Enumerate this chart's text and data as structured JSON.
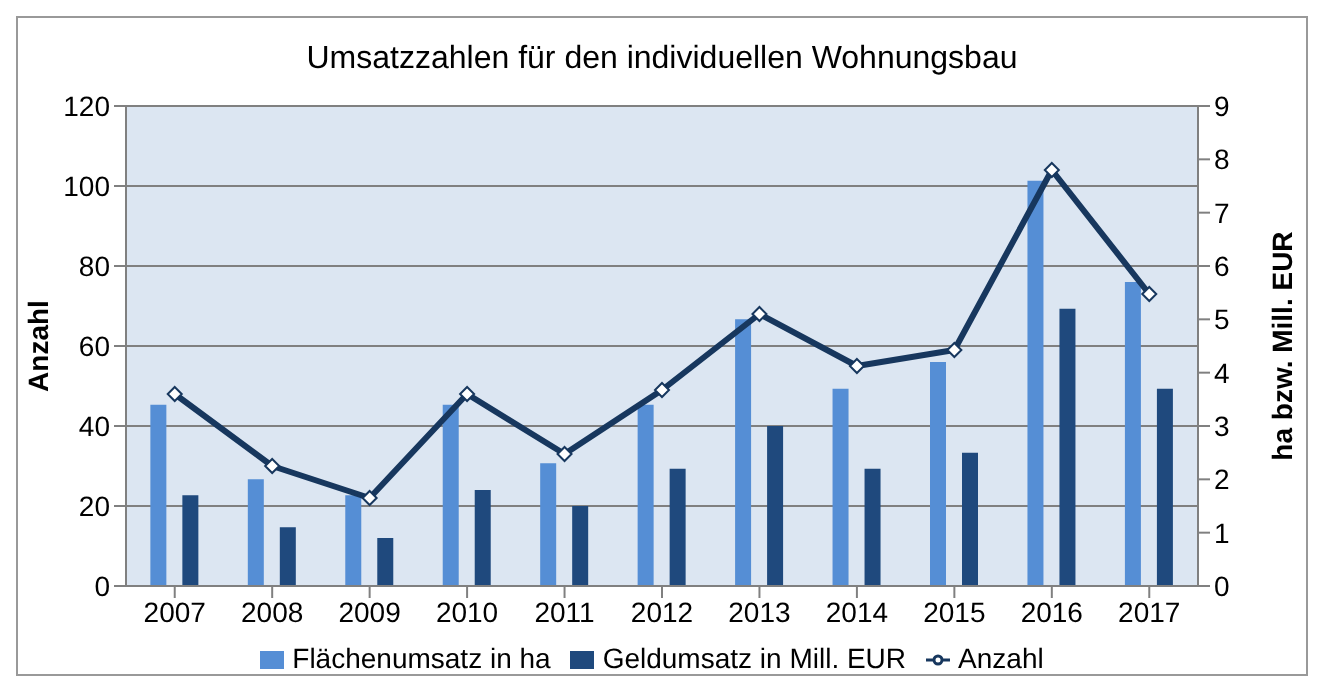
{
  "chart_data": {
    "type": "bar",
    "title": "Umsatzzahlen für den individuellen Wohnungsbau",
    "ylabel": "Anzahl",
    "y2label": "ha bzw. Mill. EUR",
    "categories": [
      "2007",
      "2008",
      "2009",
      "2010",
      "2011",
      "2012",
      "2013",
      "2014",
      "2015",
      "2016",
      "2017"
    ],
    "series": [
      {
        "name": "Flächenumsatz in ha",
        "axis": "y2",
        "color": "#558ed5",
        "values": [
          3.4,
          2.0,
          1.7,
          3.4,
          2.3,
          3.4,
          5.0,
          3.7,
          4.2,
          7.6,
          5.7
        ]
      },
      {
        "name": "Geldumsatz in Mill. EUR",
        "axis": "y2",
        "color": "#1f497d",
        "values": [
          1.7,
          1.1,
          0.9,
          1.8,
          1.5,
          2.2,
          3.0,
          2.2,
          2.5,
          5.2,
          3.7
        ]
      },
      {
        "name": "Anzahl",
        "type": "line",
        "axis": "y",
        "color": "#17375e",
        "values": [
          48,
          30,
          22,
          48,
          33,
          49,
          68,
          55,
          59,
          104,
          73
        ]
      }
    ],
    "ylim": [
      0,
      120
    ],
    "yticks": [
      0,
      20,
      40,
      60,
      80,
      100,
      120
    ],
    "y2lim": [
      0,
      9
    ],
    "y2ticks": [
      0,
      1,
      2,
      3,
      4,
      5,
      6,
      7,
      8,
      9
    ],
    "grid": "y",
    "legend": "bottom",
    "marker": "diamond",
    "line_style": "solid"
  }
}
